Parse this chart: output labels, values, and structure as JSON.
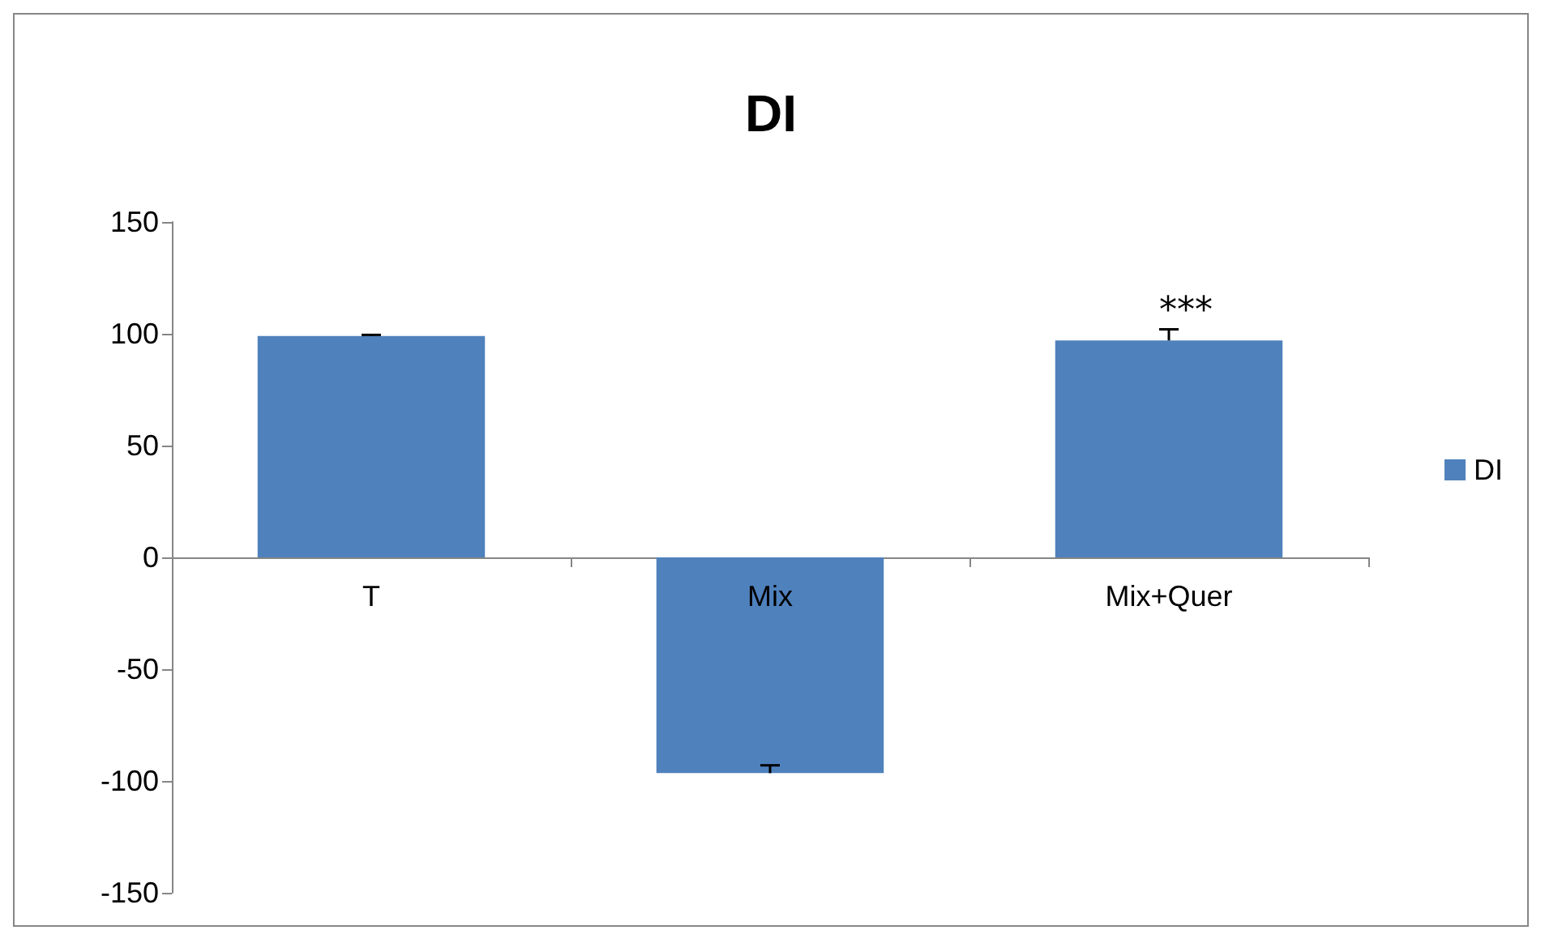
{
  "chart_data": {
    "type": "bar",
    "title": "DI",
    "categories": [
      "T",
      "Mix",
      "Mix+Quer"
    ],
    "series": [
      {
        "name": "DI",
        "color": "#4f81bd",
        "values": [
          99,
          -96.5,
          97
        ],
        "errors": [
          [
            99,
            99.5
          ],
          [
            -96.5,
            -93
          ],
          [
            97,
            102
          ]
        ]
      }
    ],
    "ylim": [
      -150,
      150
    ],
    "yticks": [
      -150,
      -100,
      -50,
      0,
      50,
      100,
      150
    ],
    "annotations": [
      "***"
    ],
    "grid": false,
    "legend": "right"
  }
}
